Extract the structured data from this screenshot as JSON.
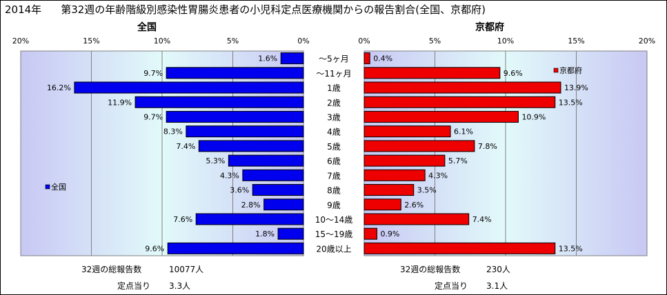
{
  "title": {
    "year": "2014年",
    "text": "第32週の年齢階級別感染性胃腸炎患者の小児科定点医療機関からの報告割合(全国、京都府)"
  },
  "left_panel": {
    "header": "全国",
    "ticks": [
      "20%",
      "15%",
      "10%",
      "5%",
      "0%"
    ],
    "legend": "全国",
    "footer": {
      "total_label": "32週の総報告数",
      "total_value": "10077人",
      "per_label": "定点当り",
      "per_value": "3.3人"
    }
  },
  "right_panel": {
    "header": "京都府",
    "ticks": [
      "0%",
      "5%",
      "10%",
      "15%",
      "20%"
    ],
    "legend": "京都府",
    "footer": {
      "total_label": "32週の総報告数",
      "total_value": "230人",
      "per_label": "定点当り",
      "per_value": "3.1人"
    }
  },
  "colors": {
    "national": "#0000ee",
    "kyoto": "#ee0000",
    "gradient_edge": "#c8c8f4",
    "gradient_center": "#e2fafa"
  },
  "chart_data": {
    "type": "bar",
    "orientation": "horizontal-butterfly",
    "xlim": [
      0,
      20
    ],
    "unit": "%",
    "categories": [
      "～5ヶ月",
      "～11ヶ月",
      "1歳",
      "2歳",
      "3歳",
      "4歳",
      "5歳",
      "6歳",
      "7歳",
      "8歳",
      "9歳",
      "10～14歳",
      "15～19歳",
      "20歳以上"
    ],
    "series": [
      {
        "name": "全国",
        "side": "left",
        "values": [
          1.6,
          9.7,
          16.2,
          11.9,
          9.7,
          8.3,
          7.4,
          5.3,
          4.3,
          3.6,
          2.8,
          7.6,
          1.8,
          9.6
        ],
        "labels": [
          "1.6%",
          "9.7%",
          "16.2%",
          "11.9%",
          "9.7%",
          "8.3%",
          "7.4%",
          "5.3%",
          "4.3%",
          "3.6%",
          "2.8%",
          "7.6%",
          "1.8%",
          "9.6%"
        ]
      },
      {
        "name": "京都府",
        "side": "right",
        "values": [
          0.4,
          9.6,
          13.9,
          13.5,
          10.9,
          6.1,
          7.8,
          5.7,
          4.3,
          3.5,
          2.6,
          7.4,
          0.9,
          13.5
        ],
        "labels": [
          "0.4%",
          "9.6%",
          "13.9%",
          "13.5%",
          "10.9%",
          "6.1%",
          "7.8%",
          "5.7%",
          "4.3%",
          "3.5%",
          "2.6%",
          "7.4%",
          "0.9%",
          "13.5%"
        ]
      }
    ]
  }
}
